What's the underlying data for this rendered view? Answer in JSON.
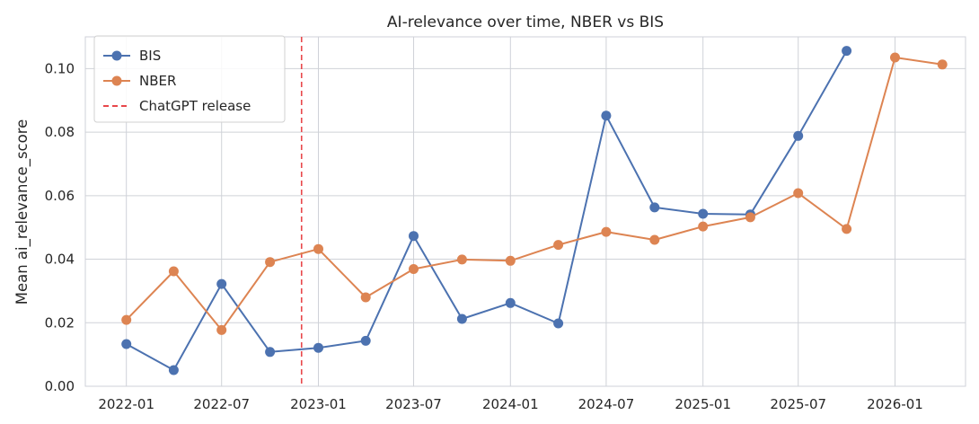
{
  "chart_data": {
    "type": "line",
    "title": "AI-relevance over time, NBER vs BIS",
    "xlabel": "",
    "ylabel": "Mean ai_relevance_score",
    "x_ticks": [
      "2022-01",
      "2022-07",
      "2023-01",
      "2023-07",
      "2024-01",
      "2024-07",
      "2025-01",
      "2025-07",
      "2026-01"
    ],
    "y_ticks": [
      "0.00",
      "0.02",
      "0.04",
      "0.06",
      "0.08",
      "0.10"
    ],
    "ylim": [
      0,
      0.11
    ],
    "xlim": [
      "2021-10-15",
      "2026-05-15"
    ],
    "grid": true,
    "legend_position": "top-left",
    "series": [
      {
        "name": "BIS",
        "color": "#4c72b0",
        "marker": "circle",
        "x": [
          "2022-01",
          "2022-04",
          "2022-07",
          "2022-10",
          "2023-01",
          "2023-04",
          "2023-07",
          "2023-10",
          "2024-01",
          "2024-04",
          "2024-07",
          "2024-10",
          "2025-01",
          "2025-04",
          "2025-07",
          "2025-10"
        ],
        "values": [
          0.0133,
          0.0051,
          0.0322,
          0.0108,
          0.0121,
          0.0143,
          0.0473,
          0.0212,
          0.0262,
          0.0198,
          0.0852,
          0.0563,
          0.0543,
          0.0541,
          0.0788,
          0.1056
        ]
      },
      {
        "name": "NBER",
        "color": "#dd8452",
        "marker": "circle",
        "x": [
          "2022-01",
          "2022-04",
          "2022-07",
          "2022-10",
          "2023-01",
          "2023-04",
          "2023-07",
          "2023-10",
          "2024-01",
          "2024-04",
          "2024-07",
          "2024-10",
          "2025-01",
          "2025-04",
          "2025-07",
          "2025-10",
          "2026-01",
          "2026-04"
        ],
        "values": [
          0.0209,
          0.0362,
          0.0177,
          0.0391,
          0.0432,
          0.028,
          0.0369,
          0.0399,
          0.0395,
          0.0445,
          0.0486,
          0.0461,
          0.0503,
          0.0532,
          0.0608,
          0.0495,
          0.1035,
          0.1013
        ]
      }
    ],
    "annotations": [
      {
        "type": "vline",
        "x": "2022-11-30",
        "label": "ChatGPT release",
        "color": "#e8474a",
        "style": "dashed"
      }
    ]
  }
}
